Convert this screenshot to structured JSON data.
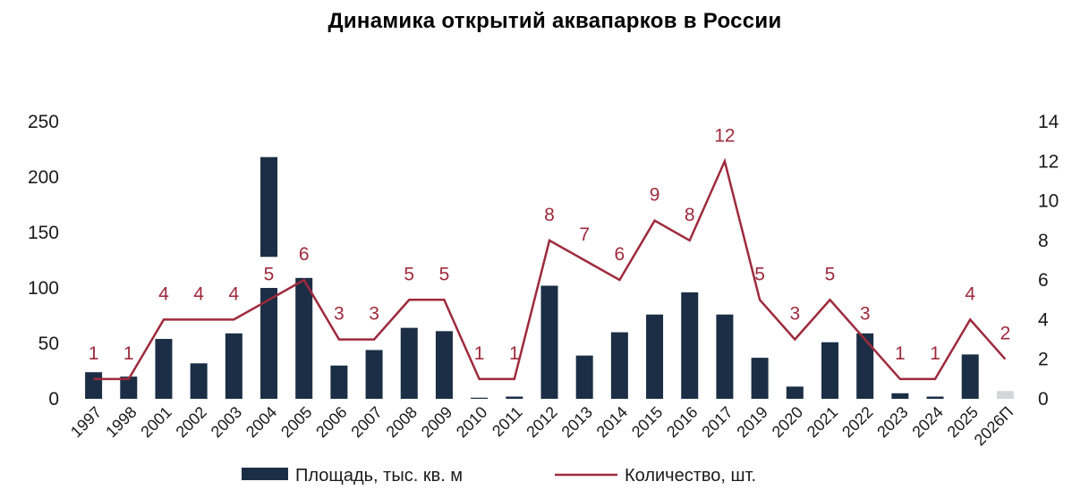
{
  "chart_data": {
    "type": "bar",
    "title": "Динамика открытий аквапарков в России",
    "categories": [
      "1997",
      "1998",
      "2001",
      "2002",
      "2003",
      "2004",
      "2005",
      "2006",
      "2007",
      "2008",
      "2009",
      "2010",
      "2011",
      "2012",
      "2013",
      "2014",
      "2015",
      "2016",
      "2017",
      "2019",
      "2020",
      "2021",
      "2022",
      "2023",
      "2024",
      "2025",
      "2026П"
    ],
    "series": [
      {
        "name": "Площадь, тыс. кв. м",
        "axis": "left",
        "type": "bar",
        "color": "#1b2e45",
        "values": [
          24,
          20,
          54,
          32,
          59,
          218,
          109,
          30,
          44,
          64,
          61,
          1,
          2,
          102,
          39,
          60,
          76,
          96,
          76,
          37,
          11,
          51,
          59,
          5,
          2,
          40,
          7
        ],
        "bar_colors_note": "last bar (forecast) light grey",
        "forecast_color": "#d3d6da"
      },
      {
        "name": "Количество, шт.",
        "axis": "right",
        "type": "line",
        "color": "#9e2a3c",
        "values": [
          1,
          1,
          4,
          4,
          4,
          5,
          6,
          3,
          3,
          5,
          5,
          1,
          1,
          8,
          7,
          6,
          9,
          8,
          12,
          5,
          3,
          5,
          3,
          1,
          1,
          4,
          2
        ]
      }
    ],
    "y_left": {
      "min": 0,
      "max": 250,
      "ticks": [
        0,
        50,
        100,
        150,
        200,
        250
      ]
    },
    "y_right": {
      "min": 0,
      "max": 14,
      "ticks": [
        0,
        2,
        4,
        6,
        8,
        10,
        12,
        14
      ]
    },
    "axis_break": {
      "bar_index": 5,
      "note": "2004 bar drawn with a break"
    },
    "grid": false,
    "legend": "bottom",
    "legend_items": [
      "Площадь, тыс. кв. м",
      "Количество, шт."
    ]
  }
}
